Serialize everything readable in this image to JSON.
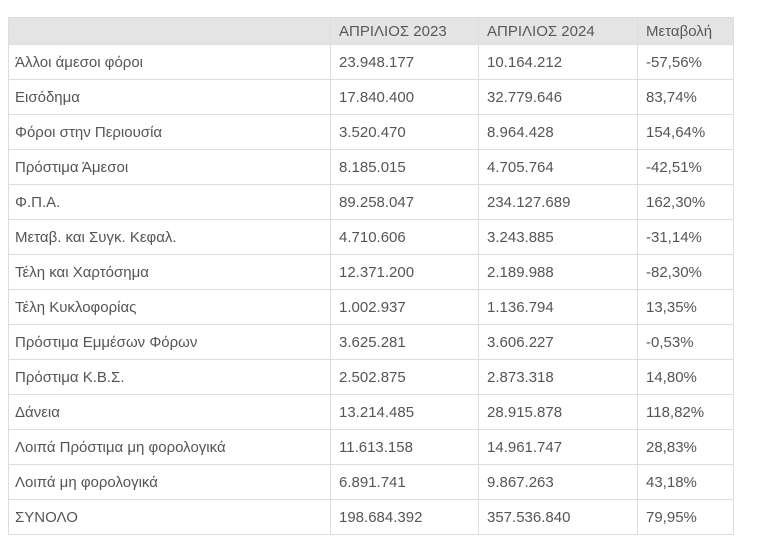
{
  "colors": {
    "header_bg": "#e4e4e4",
    "border": "#dddddd",
    "body_text": "#555555",
    "header_text": "#56595c"
  },
  "table": {
    "columns": [
      "",
      "ΑΠΡΙΛΙΟΣ 2023",
      "ΑΠΡΙΛΙΟΣ 2024",
      "Μεταβολή"
    ],
    "rows": [
      {
        "label": "Άλλοι άμεσοι φόροι",
        "v2023": "23.948.177",
        "v2024": "10.164.212",
        "change": "-57,56%"
      },
      {
        "label": "Εισόδημα",
        "v2023": "17.840.400",
        "v2024": "32.779.646",
        "change": "83,74%"
      },
      {
        "label": "Φόροι στην Περιουσία",
        "v2023": "3.520.470",
        "v2024": "8.964.428",
        "change": "154,64%"
      },
      {
        "label": "Πρόστιμα Άμεσοι",
        "v2023": "8.185.015",
        "v2024": "4.705.764",
        "change": "-42,51%"
      },
      {
        "label": "Φ.Π.Α.",
        "v2023": "89.258.047",
        "v2024": "234.127.689",
        "change": "162,30%"
      },
      {
        "label": "Μεταβ. και Συγκ. Κεφαλ.",
        "v2023": "4.710.606",
        "v2024": "3.243.885",
        "change": "-31,14%"
      },
      {
        "label": "Τέλη και Χαρτόσημα",
        "v2023": "12.371.200",
        "v2024": "2.189.988",
        "change": "-82,30%"
      },
      {
        "label": "Τέλη Κυκλοφορίας",
        "v2023": "1.002.937",
        "v2024": "1.136.794",
        "change": "13,35%"
      },
      {
        "label": "Πρόστιμα Εμμέσων Φόρων",
        "v2023": "3.625.281",
        "v2024": "3.606.227",
        "change": "-0,53%"
      },
      {
        "label": "Πρόστιμα Κ.Β.Σ.",
        "v2023": "2.502.875",
        "v2024": "2.873.318",
        "change": "14,80%"
      },
      {
        "label": "Δάνεια",
        "v2023": "13.214.485",
        "v2024": "28.915.878",
        "change": "118,82%"
      },
      {
        "label": "Λοιπά Πρόστιμα μη φορολογικά",
        "v2023": "11.613.158",
        "v2024": "14.961.747",
        "change": "28,83%"
      },
      {
        "label": "Λοιπά μη φορολογικά",
        "v2023": "6.891.741",
        "v2024": "9.867.263",
        "change": "43,18%"
      },
      {
        "label": "ΣΥΝΟΛΟ",
        "v2023": "198.684.392",
        "v2024": "357.536.840",
        "change": "79,95%"
      }
    ]
  },
  "chart_data": {
    "type": "table",
    "title": "",
    "columns": [
      "",
      "ΑΠΡΙΛΙΟΣ 2023",
      "ΑΠΡΙΛΙΟΣ 2024",
      "Μεταβολή"
    ],
    "categories": [
      "Άλλοι άμεσοι φόροι",
      "Εισόδημα",
      "Φόροι στην Περιουσία",
      "Πρόστιμα Άμεσοι",
      "Φ.Π.Α.",
      "Μεταβ. και Συγκ. Κεφαλ.",
      "Τέλη και Χαρτόσημα",
      "Τέλη Κυκλοφορίας",
      "Πρόστιμα Εμμέσων Φόρων",
      "Πρόστιμα Κ.Β.Σ.",
      "Δάνεια",
      "Λοιπά Πρόστιμα μη φορολογικά",
      "Λοιπά μη φορολογικά",
      "ΣΥΝΟΛΟ"
    ],
    "series": [
      {
        "name": "ΑΠΡΙΛΙΟΣ 2023",
        "values": [
          23948177,
          17840400,
          3520470,
          8185015,
          89258047,
          4710606,
          12371200,
          1002937,
          3625281,
          2502875,
          13214485,
          11613158,
          6891741,
          198684392
        ]
      },
      {
        "name": "ΑΠΡΙΛΙΟΣ 2024",
        "values": [
          10164212,
          32779646,
          8964428,
          4705764,
          234127689,
          3243885,
          2189988,
          1136794,
          3606227,
          2873318,
          28915878,
          14961747,
          9867263,
          357536840
        ]
      },
      {
        "name": "Μεταβολή (%)",
        "values": [
          -57.56,
          83.74,
          154.64,
          -42.51,
          162.3,
          -31.14,
          -82.3,
          13.35,
          -0.53,
          14.8,
          118.82,
          28.83,
          43.18,
          79.95
        ]
      }
    ]
  }
}
